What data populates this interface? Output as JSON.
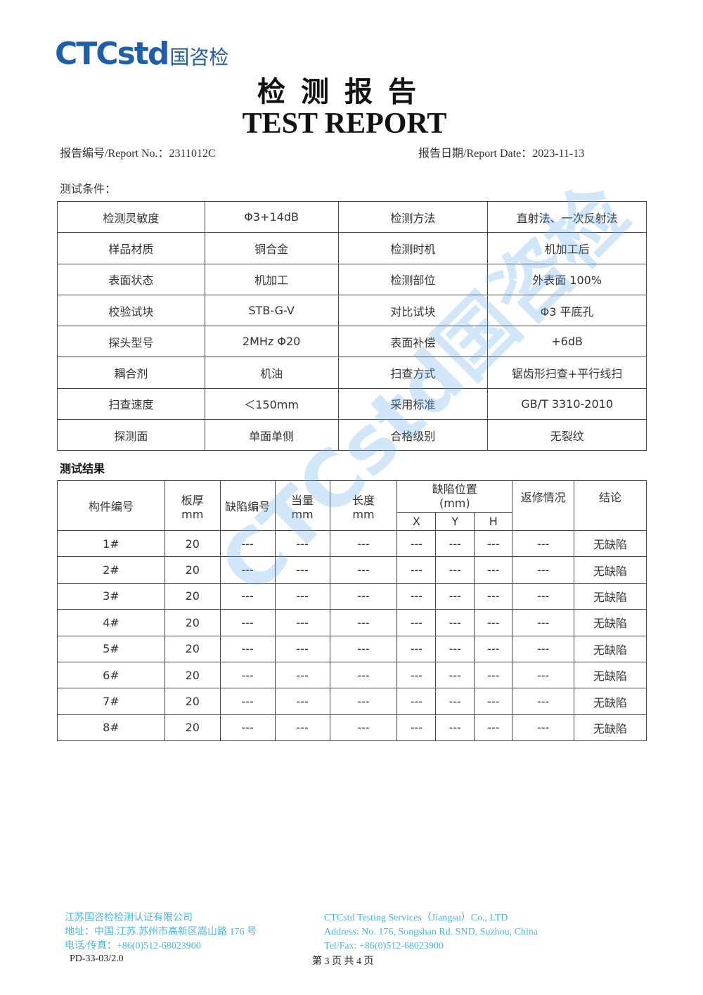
{
  "logo": {
    "text": "CTCstd",
    "cn": "国咨检"
  },
  "title_cn": "检测报告",
  "title_en": "TEST REPORT",
  "report_no": "报告编号/Report No.：2311012C",
  "report_date": "报告日期/Report Date：2023-11-13",
  "conditions_label": "测试条件：",
  "conditions": [
    [
      "检测灵敏度",
      "Φ3+14dB",
      "检测方法",
      "直射法、一次反射法"
    ],
    [
      "样品材质",
      "铜合金",
      "检测时机",
      "机加工后"
    ],
    [
      "表面状态",
      "机加工",
      "检测部位",
      "外表面 100%"
    ],
    [
      "校验试块",
      "STB-G-V",
      "对比试块",
      "Φ3 平底孔"
    ],
    [
      "探头型号",
      "2MHz Φ20",
      "表面补偿",
      "+6dB"
    ],
    [
      "耦合剂",
      "机油",
      "扫查方式",
      "锯齿形扫查+平行线扫"
    ],
    [
      "扫查速度",
      "＜150mm",
      "采用标准",
      "GB/T 3310-2010"
    ],
    [
      "探测面",
      "单面单侧",
      "合格级别",
      "无裂纹"
    ]
  ],
  "results_label": "测试结果",
  "results_header": {
    "part_no": "构件编号",
    "thickness": "板厚",
    "thickness_unit": "mm",
    "defect_no": "缺陷编号",
    "equivalent": "当量",
    "equivalent_unit": "mm",
    "length": "长度",
    "length_unit": "mm",
    "position": "缺陷位置",
    "position_unit": "(mm)",
    "x": "X",
    "y": "Y",
    "h": "H",
    "repair": "返修情况",
    "conclusion": "结论"
  },
  "results": [
    [
      "1#",
      "20",
      "---",
      "---",
      "---",
      "---",
      "---",
      "---",
      "---",
      "无缺陷"
    ],
    [
      "2#",
      "20",
      "---",
      "---",
      "---",
      "---",
      "---",
      "---",
      "---",
      "无缺陷"
    ],
    [
      "3#",
      "20",
      "---",
      "---",
      "---",
      "---",
      "---",
      "---",
      "---",
      "无缺陷"
    ],
    [
      "4#",
      "20",
      "---",
      "---",
      "---",
      "---",
      "---",
      "---",
      "---",
      "无缺陷"
    ],
    [
      "5#",
      "20",
      "---",
      "---",
      "---",
      "---",
      "---",
      "---",
      "---",
      "无缺陷"
    ],
    [
      "6#",
      "20",
      "---",
      "---",
      "---",
      "---",
      "---",
      "---",
      "---",
      "无缺陷"
    ],
    [
      "7#",
      "20",
      "---",
      "---",
      "---",
      "---",
      "---",
      "---",
      "---",
      "无缺陷"
    ],
    [
      "8#",
      "20",
      "---",
      "---",
      "---",
      "---",
      "---",
      "---",
      "---",
      "无缺陷"
    ]
  ],
  "watermark": "CTCstd国咨检",
  "footer": {
    "cn_company": "江苏国咨检检测认证有限公司",
    "cn_address": "地址：中国.江苏.苏州市高新区嵩山路 176 号",
    "cn_tel": "电话/传真：+86(0)512-68023900",
    "en_company": "CTCstd Testing Services（Jiangsu）Co., LTD",
    "en_address": "Address: No. 176, Songshan Rd. SND, Suzhou, China",
    "en_tel": "Tel/Fax: +86(0)512-68023900",
    "doc_code": "PD-33-03/2.0",
    "page": "第 3 页 共 4 页"
  }
}
